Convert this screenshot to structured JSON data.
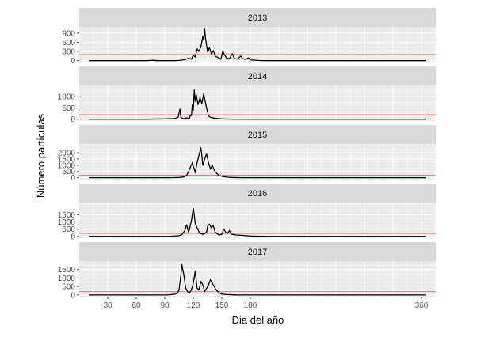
{
  "chart_data": {
    "type": "line",
    "xlabel": "Dia del año",
    "ylabel": "Número partículas",
    "xlim": [
      0,
      375
    ],
    "x_ticks": [
      30,
      60,
      90,
      120,
      150,
      180,
      360
    ],
    "threshold": 200,
    "colors": {
      "line": "#000000",
      "threshold": "#f8766d",
      "panel": "#ebebeb",
      "strip": "#d9d9d9",
      "grid": "#ffffff"
    },
    "grid": true,
    "panels": [
      {
        "label": "2013",
        "ylim": [
          -60,
          1100
        ],
        "y_ticks": [
          0,
          300,
          600,
          900
        ],
        "series": [
          [
            10,
            0
          ],
          [
            70,
            0
          ],
          [
            78,
            12
          ],
          [
            82,
            0
          ],
          [
            100,
            0
          ],
          [
            105,
            8
          ],
          [
            108,
            18
          ],
          [
            112,
            40
          ],
          [
            115,
            80
          ],
          [
            118,
            50
          ],
          [
            120,
            180
          ],
          [
            122,
            120
          ],
          [
            124,
            380
          ],
          [
            126,
            300
          ],
          [
            128,
            450
          ],
          [
            130,
            800
          ],
          [
            131,
            680
          ],
          [
            132,
            1030
          ],
          [
            133,
            700
          ],
          [
            135,
            280
          ],
          [
            137,
            420
          ],
          [
            139,
            220
          ],
          [
            141,
            330
          ],
          [
            143,
            150
          ],
          [
            145,
            120
          ],
          [
            147,
            80
          ],
          [
            149,
            40
          ],
          [
            151,
            320
          ],
          [
            153,
            180
          ],
          [
            155,
            90
          ],
          [
            158,
            60
          ],
          [
            161,
            230
          ],
          [
            163,
            80
          ],
          [
            166,
            50
          ],
          [
            170,
            150
          ],
          [
            172,
            60
          ],
          [
            175,
            40
          ],
          [
            178,
            90
          ],
          [
            180,
            20
          ],
          [
            185,
            15
          ],
          [
            190,
            5
          ],
          [
            200,
            0
          ],
          [
            365,
            0
          ]
        ]
      },
      {
        "label": "2014",
        "ylim": [
          -80,
          1500
        ],
        "y_ticks": [
          0,
          500,
          1000
        ],
        "series": [
          [
            10,
            0
          ],
          [
            70,
            0
          ],
          [
            90,
            15
          ],
          [
            100,
            25
          ],
          [
            104,
            80
          ],
          [
            106,
            450
          ],
          [
            107,
            80
          ],
          [
            110,
            20
          ],
          [
            113,
            60
          ],
          [
            115,
            30
          ],
          [
            116,
            50
          ],
          [
            117,
            200
          ],
          [
            118,
            150
          ],
          [
            119,
            650
          ],
          [
            120,
            400
          ],
          [
            121,
            1300
          ],
          [
            122,
            800
          ],
          [
            123,
            1100
          ],
          [
            125,
            650
          ],
          [
            127,
            950
          ],
          [
            129,
            700
          ],
          [
            131,
            1150
          ],
          [
            132,
            900
          ],
          [
            134,
            500
          ],
          [
            136,
            150
          ],
          [
            138,
            80
          ],
          [
            142,
            50
          ],
          [
            146,
            30
          ],
          [
            150,
            15
          ],
          [
            160,
            5
          ],
          [
            175,
            0
          ],
          [
            365,
            0
          ]
        ]
      },
      {
        "label": "2015",
        "ylim": [
          -150,
          2700
        ],
        "y_ticks": [
          0,
          500,
          1000,
          1500,
          2000
        ],
        "series": [
          [
            10,
            0
          ],
          [
            90,
            0
          ],
          [
            100,
            10
          ],
          [
            105,
            20
          ],
          [
            110,
            60
          ],
          [
            113,
            200
          ],
          [
            115,
            500
          ],
          [
            117,
            850
          ],
          [
            119,
            1200
          ],
          [
            121,
            700
          ],
          [
            122,
            400
          ],
          [
            124,
            1200
          ],
          [
            126,
            1800
          ],
          [
            128,
            2400
          ],
          [
            129,
            1800
          ],
          [
            130,
            1000
          ],
          [
            132,
            1500
          ],
          [
            134,
            1900
          ],
          [
            136,
            1200
          ],
          [
            138,
            700
          ],
          [
            140,
            1000
          ],
          [
            142,
            600
          ],
          [
            144,
            400
          ],
          [
            146,
            250
          ],
          [
            148,
            150
          ],
          [
            152,
            80
          ],
          [
            156,
            40
          ],
          [
            160,
            20
          ],
          [
            170,
            5
          ],
          [
            180,
            0
          ],
          [
            365,
            0
          ]
        ]
      },
      {
        "label": "2016",
        "ylim": [
          -120,
          2350
        ],
        "y_ticks": [
          0,
          500,
          1000,
          1500
        ],
        "series": [
          [
            10,
            0
          ],
          [
            95,
            0
          ],
          [
            100,
            20
          ],
          [
            105,
            50
          ],
          [
            108,
            120
          ],
          [
            111,
            400
          ],
          [
            113,
            800
          ],
          [
            115,
            300
          ],
          [
            116,
            500
          ],
          [
            118,
            1100
          ],
          [
            120,
            1950
          ],
          [
            121,
            1500
          ],
          [
            122,
            900
          ],
          [
            124,
            600
          ],
          [
            126,
            300
          ],
          [
            128,
            200
          ],
          [
            130,
            150
          ],
          [
            132,
            200
          ],
          [
            134,
            300
          ],
          [
            135,
            700
          ],
          [
            137,
            850
          ],
          [
            139,
            600
          ],
          [
            141,
            750
          ],
          [
            143,
            300
          ],
          [
            145,
            200
          ],
          [
            147,
            100
          ],
          [
            150,
            150
          ],
          [
            152,
            500
          ],
          [
            154,
            300
          ],
          [
            156,
            200
          ],
          [
            158,
            400
          ],
          [
            160,
            150
          ],
          [
            165,
            100
          ],
          [
            170,
            80
          ],
          [
            175,
            50
          ],
          [
            180,
            30
          ],
          [
            190,
            10
          ],
          [
            200,
            0
          ],
          [
            365,
            0
          ]
        ]
      },
      {
        "label": "2017",
        "ylim": [
          -100,
          2000
        ],
        "y_ticks": [
          0,
          500,
          1000,
          1500
        ],
        "series": [
          [
            10,
            0
          ],
          [
            90,
            0
          ],
          [
            95,
            10
          ],
          [
            100,
            40
          ],
          [
            103,
            80
          ],
          [
            105,
            300
          ],
          [
            107,
            1200
          ],
          [
            108,
            1800
          ],
          [
            110,
            1200
          ],
          [
            112,
            400
          ],
          [
            114,
            200
          ],
          [
            116,
            100
          ],
          [
            118,
            300
          ],
          [
            120,
            700
          ],
          [
            122,
            1400
          ],
          [
            123,
            900
          ],
          [
            124,
            400
          ],
          [
            126,
            300
          ],
          [
            128,
            800
          ],
          [
            130,
            600
          ],
          [
            132,
            200
          ],
          [
            134,
            400
          ],
          [
            136,
            600
          ],
          [
            138,
            900
          ],
          [
            140,
            700
          ],
          [
            142,
            500
          ],
          [
            144,
            300
          ],
          [
            146,
            200
          ],
          [
            148,
            100
          ],
          [
            150,
            50
          ],
          [
            155,
            20
          ],
          [
            165,
            5
          ],
          [
            175,
            0
          ],
          [
            365,
            0
          ]
        ]
      }
    ]
  }
}
